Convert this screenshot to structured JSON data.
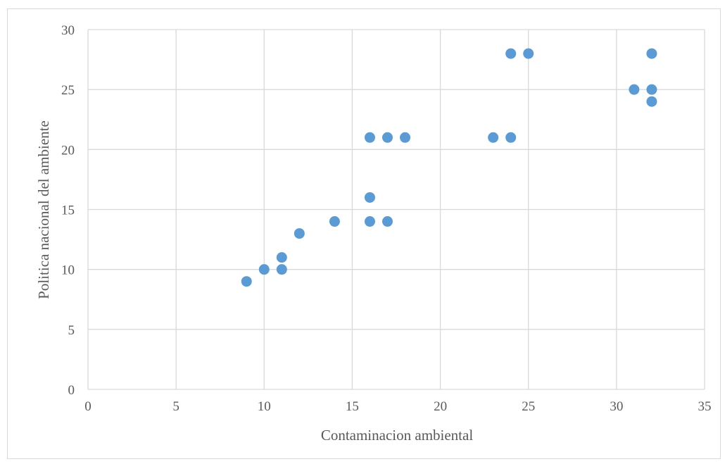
{
  "chart_data": {
    "type": "scatter",
    "title": "",
    "xlabel": "Contaminacion ambiental",
    "ylabel": "Politica nacional del ambiente",
    "xlim": [
      0,
      35
    ],
    "ylim": [
      0,
      30
    ],
    "x_ticks": [
      "0",
      "5",
      "10",
      "15",
      "20",
      "25",
      "30",
      "35"
    ],
    "y_ticks": [
      "0",
      "5",
      "10",
      "15",
      "20",
      "25",
      "30"
    ],
    "grid": true,
    "legend": "none",
    "marker_color": "#5b9bd5",
    "points": [
      {
        "x": 9,
        "y": 9
      },
      {
        "x": 10,
        "y": 10
      },
      {
        "x": 11,
        "y": 10
      },
      {
        "x": 11,
        "y": 11
      },
      {
        "x": 12,
        "y": 13
      },
      {
        "x": 14,
        "y": 14
      },
      {
        "x": 16,
        "y": 14
      },
      {
        "x": 17,
        "y": 14
      },
      {
        "x": 16,
        "y": 16
      },
      {
        "x": 16,
        "y": 21
      },
      {
        "x": 17,
        "y": 21
      },
      {
        "x": 18,
        "y": 21
      },
      {
        "x": 23,
        "y": 21
      },
      {
        "x": 24,
        "y": 21
      },
      {
        "x": 24,
        "y": 28
      },
      {
        "x": 25,
        "y": 28
      },
      {
        "x": 31,
        "y": 25
      },
      {
        "x": 32,
        "y": 25
      },
      {
        "x": 32,
        "y": 24
      },
      {
        "x": 32,
        "y": 28
      }
    ]
  }
}
